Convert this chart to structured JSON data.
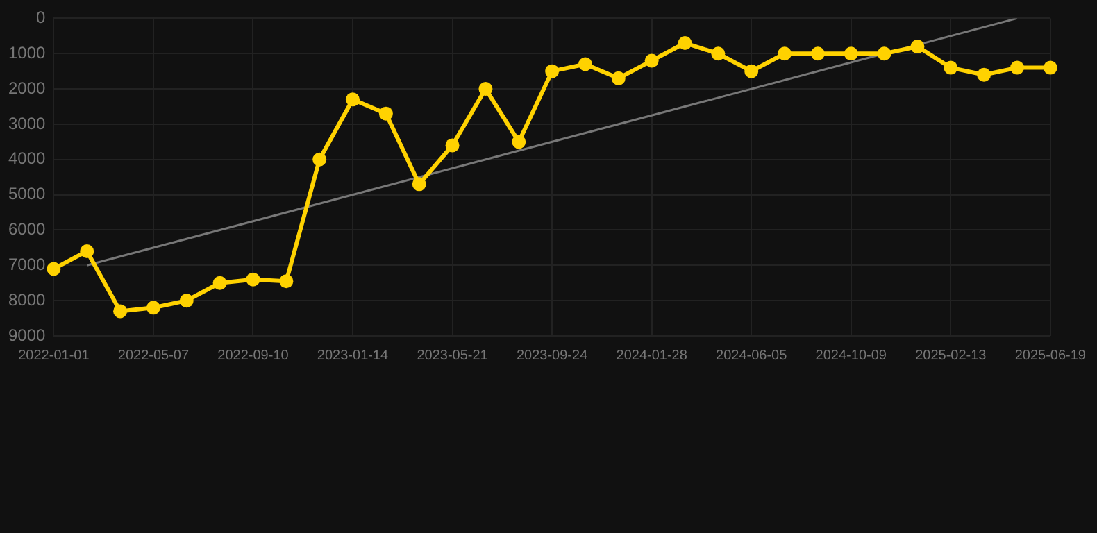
{
  "chart_data": {
    "type": "line",
    "categories": [
      "2022-01-01",
      null,
      null,
      "2022-05-07",
      null,
      null,
      "2022-09-10",
      null,
      null,
      "2023-01-14",
      null,
      null,
      "2023-05-21",
      null,
      null,
      "2023-09-24",
      null,
      null,
      "2024-01-28",
      null,
      null,
      "2024-06-05",
      null,
      null,
      "2024-10-09",
      null,
      null,
      "2025-02-13",
      null,
      null,
      "2025-06-19"
    ],
    "series": [
      {
        "color": "#ffd200",
        "marker": "circle",
        "values": [
          7100,
          6600,
          8300,
          8200,
          8000,
          7500,
          7400,
          7450,
          4000,
          2300,
          2700,
          4700,
          3600,
          2000,
          3500,
          1500,
          1300,
          1700,
          1200,
          700,
          1000,
          1500,
          1000,
          1000,
          1000,
          1000,
          800,
          1400,
          1600,
          1400,
          1400
        ]
      },
      {
        "color": "#777777",
        "marker": "none",
        "values": [
          null,
          7000,
          null,
          null,
          null,
          null,
          null,
          null,
          null,
          null,
          null,
          null,
          null,
          null,
          null,
          null,
          null,
          null,
          null,
          null,
          null,
          null,
          null,
          null,
          null,
          null,
          null,
          null,
          null,
          0,
          null
        ]
      }
    ],
    "ylim": [
      9000,
      0
    ],
    "yticks": [
      0,
      1000,
      2000,
      3000,
      4000,
      5000,
      6000,
      7000,
      8000,
      9000
    ],
    "grid": true,
    "legend": false
  }
}
